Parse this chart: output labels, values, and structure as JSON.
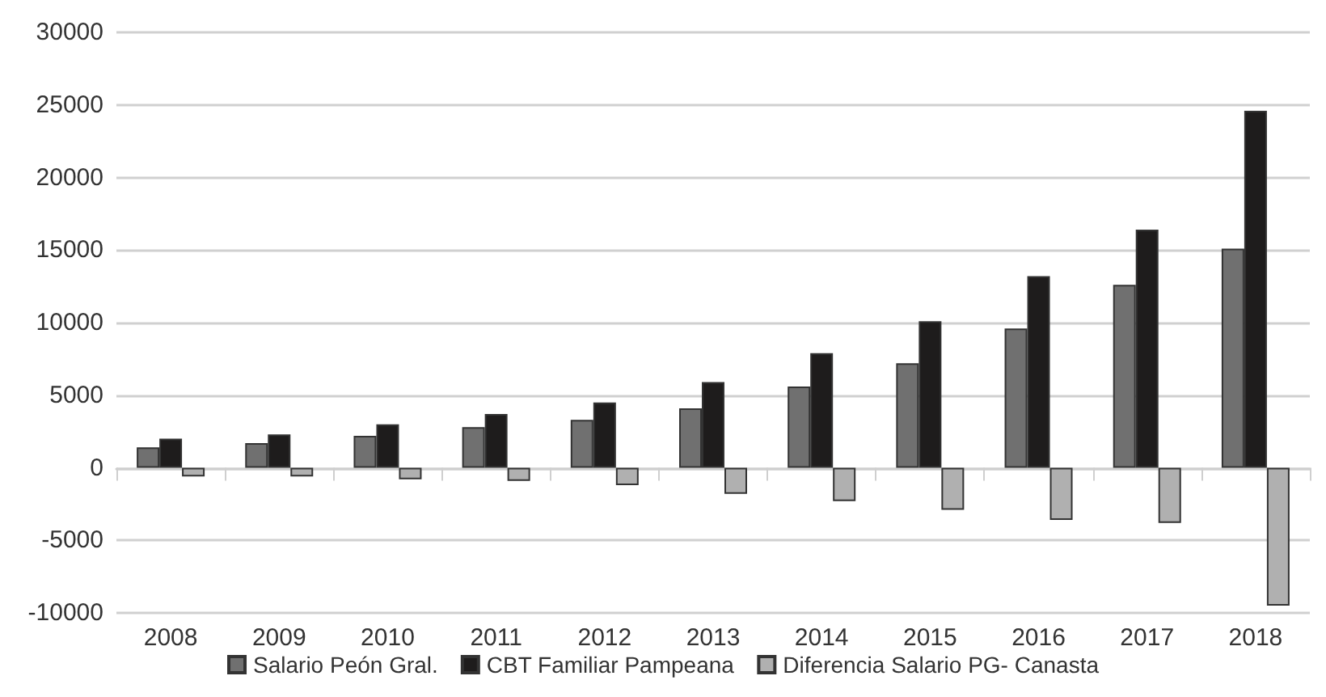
{
  "chart_data": {
    "type": "bar",
    "categories": [
      "2008",
      "2009",
      "2010",
      "2011",
      "2012",
      "2013",
      "2014",
      "2015",
      "2016",
      "2017",
      "2018"
    ],
    "series": [
      {
        "name": "Salario Peón Gral.",
        "color": "#707070",
        "values": [
          1400,
          1700,
          2200,
          2800,
          3300,
          4100,
          5600,
          7200,
          9600,
          12600,
          15100
        ]
      },
      {
        "name": "CBT Familiar Pampeana",
        "color": "#1e1c1c",
        "values": [
          2000,
          2300,
          3000,
          3700,
          4500,
          5900,
          7900,
          10100,
          13200,
          16400,
          24600
        ]
      },
      {
        "name": "Diferencia Salario PG- Canasta",
        "color": "#b0b0b0",
        "values": [
          -600,
          -600,
          -800,
          -900,
          -1200,
          -1800,
          -2300,
          -2900,
          -3600,
          -3800,
          -9500
        ]
      }
    ],
    "ylim": [
      -10000,
      30000
    ],
    "yticks": [
      -10000,
      -5000,
      0,
      5000,
      10000,
      15000,
      20000,
      25000,
      30000
    ],
    "grid": "y",
    "legend": "bottom"
  }
}
